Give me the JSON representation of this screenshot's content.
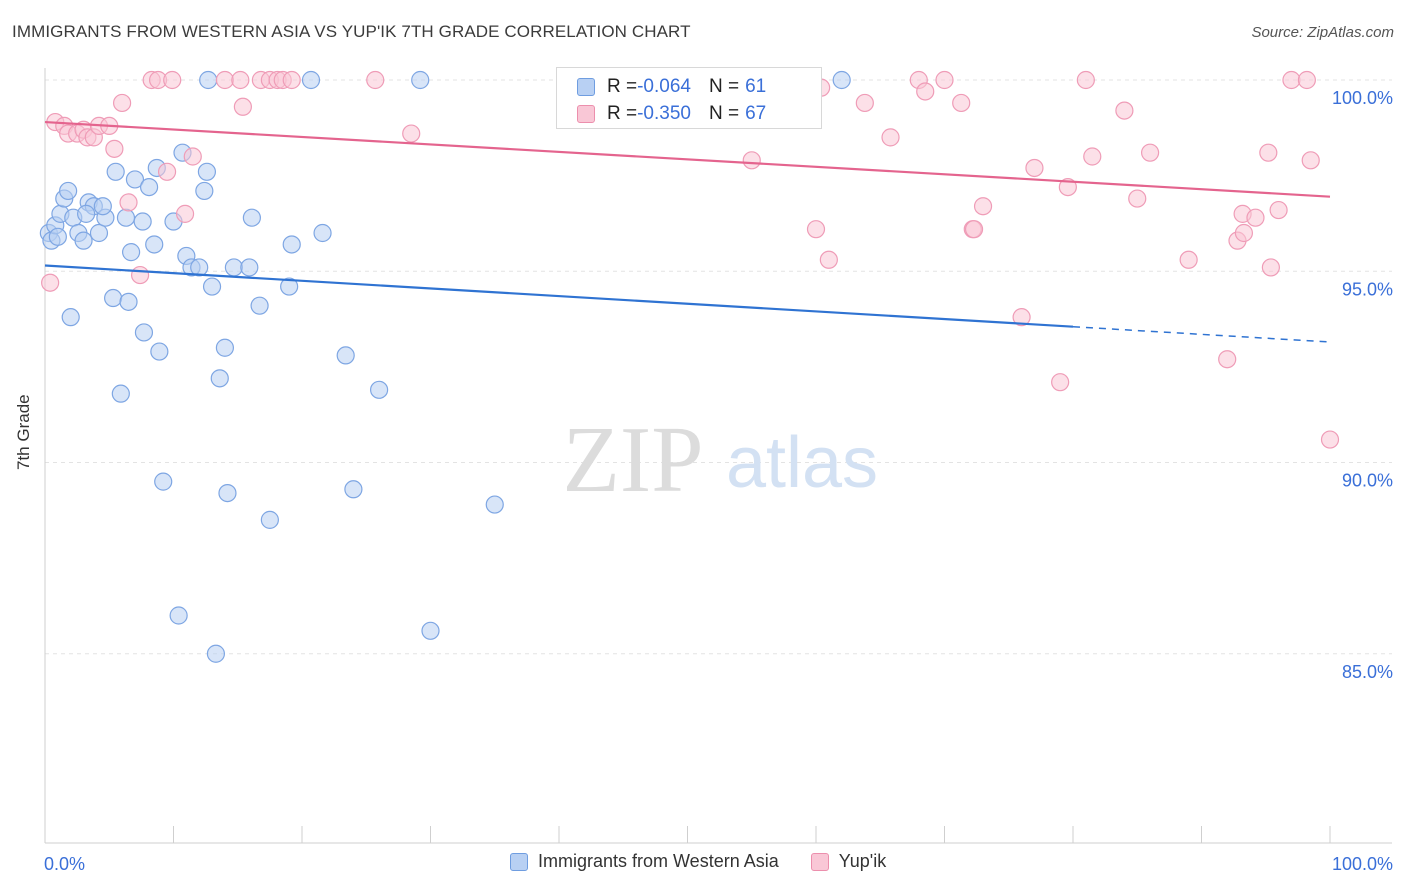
{
  "header": {
    "title": "IMMIGRANTS FROM WESTERN ASIA VS YUP'IK 7TH GRADE CORRELATION CHART",
    "source": "Source: ZipAtlas.com"
  },
  "stats": {
    "rows": [
      {
        "r_label": "R = ",
        "r_value": "-0.064",
        "n_label": "N = ",
        "n_value": "61"
      },
      {
        "r_label": "R = ",
        "r_value": "-0.350",
        "n_label": "N = ",
        "n_value": "67"
      }
    ]
  },
  "legend": {
    "items": [
      {
        "label": "Immigrants from Western Asia"
      },
      {
        "label": "Yup'ik"
      }
    ]
  },
  "watermark": {
    "zip": "ZIP",
    "atlas": "atlas"
  },
  "colors": {
    "blue_fill": "#b8d0f3",
    "blue_stroke": "#7ea6e3",
    "blue_line": "#2f73d2",
    "pink_fill": "#f9c7d6",
    "pink_stroke": "#ef9cb7",
    "pink_line": "#e4648e",
    "tick_label": "#3a6fd8",
    "grid": "#e3e3e3"
  },
  "chart_data": {
    "type": "scatter",
    "title": "IMMIGRANTS FROM WESTERN ASIA VS YUP'IK 7TH GRADE CORRELATION CHART",
    "xlabel": "",
    "ylabel": "7th Grade",
    "xlim": [
      0,
      100
    ],
    "ylim": [
      80.5,
      100.7
    ],
    "x_tick_labels": [
      {
        "value": 0,
        "label": "0.0%"
      },
      {
        "value": 100,
        "label": "100.0%"
      }
    ],
    "y_tick_labels": [
      {
        "value": 100,
        "label": "100.0%"
      },
      {
        "value": 95,
        "label": "95.0%"
      },
      {
        "value": 90,
        "label": "90.0%"
      },
      {
        "value": 85,
        "label": "85.0%"
      }
    ],
    "y_grid": [
      100,
      95,
      90,
      85
    ],
    "grid": true,
    "series": [
      {
        "name": "Immigrants from Western Asia",
        "color": "#7ea6e3",
        "trend": {
          "x0": 0,
          "y0": 95.15,
          "x1": 80,
          "y1": 93.55,
          "dash_x1": 100,
          "dash_y1": 93.15
        },
        "points": [
          [
            0.3,
            96.0
          ],
          [
            0.5,
            95.8
          ],
          [
            0.8,
            96.2
          ],
          [
            1.2,
            96.5
          ],
          [
            1.5,
            96.9
          ],
          [
            1.8,
            97.1
          ],
          [
            2.2,
            96.4
          ],
          [
            2.6,
            96.0
          ],
          [
            3.0,
            95.8
          ],
          [
            3.4,
            96.8
          ],
          [
            3.8,
            96.7
          ],
          [
            4.2,
            96.0
          ],
          [
            4.7,
            96.4
          ],
          [
            5.5,
            97.6
          ],
          [
            6.3,
            96.4
          ],
          [
            7.0,
            97.4
          ],
          [
            7.6,
            96.3
          ],
          [
            8.1,
            97.2
          ],
          [
            8.5,
            95.7
          ],
          [
            8.7,
            97.7
          ],
          [
            10.0,
            96.3
          ],
          [
            10.7,
            98.1
          ],
          [
            11.0,
            95.4
          ],
          [
            11.4,
            95.1
          ],
          [
            12.0,
            95.1
          ],
          [
            12.4,
            97.1
          ],
          [
            12.6,
            97.6
          ],
          [
            13.0,
            94.6
          ],
          [
            14.7,
            95.1
          ],
          [
            15.9,
            95.1
          ],
          [
            16.1,
            96.4
          ],
          [
            16.7,
            94.1
          ],
          [
            19.2,
            95.7
          ],
          [
            19.0,
            94.6
          ],
          [
            21.6,
            96.0
          ],
          [
            23.4,
            92.8
          ],
          [
            26.0,
            91.9
          ],
          [
            5.3,
            94.3
          ],
          [
            6.5,
            94.2
          ],
          [
            7.7,
            93.4
          ],
          [
            8.9,
            92.9
          ],
          [
            14.0,
            93.0
          ],
          [
            13.6,
            92.2
          ],
          [
            2.0,
            93.8
          ],
          [
            5.9,
            91.8
          ],
          [
            9.2,
            89.5
          ],
          [
            14.2,
            89.2
          ],
          [
            17.5,
            88.5
          ],
          [
            24.0,
            89.3
          ],
          [
            35.0,
            88.9
          ],
          [
            10.4,
            86.0
          ],
          [
            13.3,
            85.0
          ],
          [
            30.0,
            85.6
          ],
          [
            12.7,
            100.0
          ],
          [
            20.7,
            100.0
          ],
          [
            29.2,
            100.0
          ],
          [
            62.0,
            100.0
          ],
          [
            4.5,
            96.7
          ],
          [
            1.0,
            95.9
          ],
          [
            6.7,
            95.5
          ],
          [
            3.2,
            96.5
          ]
        ]
      },
      {
        "name": "Yup'ik",
        "color": "#ef9cb7",
        "trend": {
          "x0": 0,
          "y0": 98.9,
          "x1": 100,
          "y1": 96.95
        },
        "points": [
          [
            0.4,
            94.7
          ],
          [
            0.8,
            98.9
          ],
          [
            1.5,
            98.8
          ],
          [
            1.8,
            98.6
          ],
          [
            2.5,
            98.6
          ],
          [
            3.0,
            98.7
          ],
          [
            3.3,
            98.5
          ],
          [
            3.8,
            98.5
          ],
          [
            4.2,
            98.8
          ],
          [
            5.0,
            98.8
          ],
          [
            5.4,
            98.2
          ],
          [
            6.0,
            99.4
          ],
          [
            6.5,
            96.8
          ],
          [
            7.4,
            94.9
          ],
          [
            8.3,
            100.0
          ],
          [
            8.8,
            100.0
          ],
          [
            9.5,
            97.6
          ],
          [
            9.9,
            100.0
          ],
          [
            10.9,
            96.5
          ],
          [
            11.5,
            98.0
          ],
          [
            14.0,
            100.0
          ],
          [
            15.2,
            100.0
          ],
          [
            15.4,
            99.3
          ],
          [
            16.8,
            100.0
          ],
          [
            17.5,
            100.0
          ],
          [
            18.1,
            100.0
          ],
          [
            18.5,
            100.0
          ],
          [
            19.2,
            100.0
          ],
          [
            25.7,
            100.0
          ],
          [
            28.5,
            98.6
          ],
          [
            41.0,
            100.0
          ],
          [
            55.0,
            97.9
          ],
          [
            58.0,
            100.0
          ],
          [
            60.0,
            96.1
          ],
          [
            60.4,
            99.8
          ],
          [
            61.0,
            95.3
          ],
          [
            63.8,
            99.4
          ],
          [
            65.8,
            98.5
          ],
          [
            68.0,
            100.0
          ],
          [
            68.5,
            99.7
          ],
          [
            70.0,
            100.0
          ],
          [
            71.3,
            99.4
          ],
          [
            72.2,
            96.1
          ],
          [
            72.3,
            96.1
          ],
          [
            73.0,
            96.7
          ],
          [
            76.0,
            93.8
          ],
          [
            77.0,
            97.7
          ],
          [
            79.0,
            92.1
          ],
          [
            79.6,
            97.2
          ],
          [
            81.0,
            100.0
          ],
          [
            81.5,
            98.0
          ],
          [
            84.0,
            99.2
          ],
          [
            85.0,
            96.9
          ],
          [
            86.0,
            98.1
          ],
          [
            89.0,
            95.3
          ],
          [
            92.0,
            92.7
          ],
          [
            92.8,
            95.8
          ],
          [
            93.3,
            96.0
          ],
          [
            93.2,
            96.5
          ],
          [
            94.2,
            96.4
          ],
          [
            95.2,
            98.1
          ],
          [
            95.4,
            95.1
          ],
          [
            96.0,
            96.6
          ],
          [
            97.0,
            100.0
          ],
          [
            98.2,
            100.0
          ],
          [
            98.5,
            97.9
          ],
          [
            100.0,
            90.6
          ]
        ]
      }
    ]
  }
}
